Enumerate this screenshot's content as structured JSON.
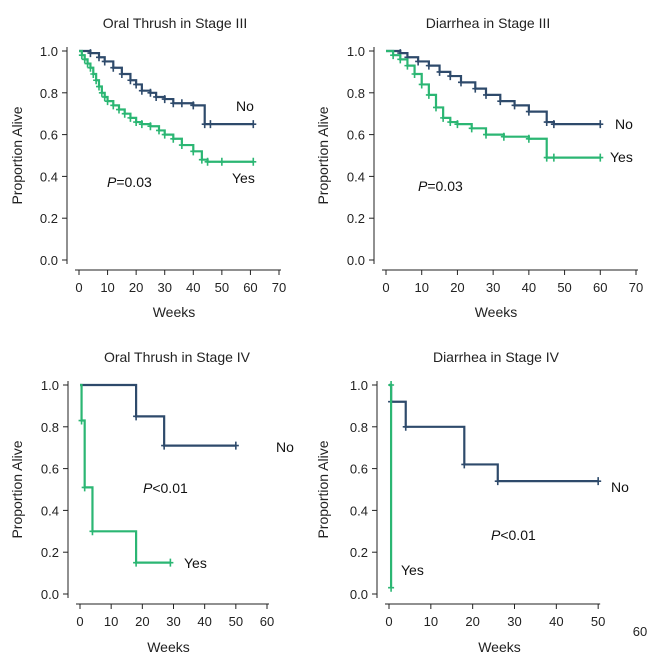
{
  "chart_data": [
    {
      "type": "line",
      "title": "Oral Thrush in Stage III",
      "xlabel": "Weeks",
      "ylabel": "Proportion Alive",
      "xlim": [
        0,
        70
      ],
      "ylim": [
        0,
        1
      ],
      "xticks": [
        "0",
        "10",
        "20",
        "30",
        "40",
        "50",
        "60",
        "70"
      ],
      "yticks": [
        "0.0",
        "0.2",
        "0.4",
        "0.6",
        "0.8",
        "1.0"
      ],
      "annotation": {
        "prefix": "P",
        "text": "=0.03"
      },
      "series": [
        {
          "name": "No",
          "color": "#2e4a6b",
          "x": [
            0,
            4,
            7,
            9,
            12,
            15,
            18,
            20,
            22,
            25,
            27,
            30,
            33,
            36,
            40,
            44,
            46,
            61
          ],
          "y": [
            1.0,
            0.99,
            0.97,
            0.95,
            0.92,
            0.89,
            0.86,
            0.84,
            0.81,
            0.8,
            0.78,
            0.77,
            0.75,
            0.75,
            0.74,
            0.65,
            0.65,
            0.65
          ]
        },
        {
          "name": "Yes",
          "color": "#2bb673",
          "x": [
            0,
            1,
            2,
            3,
            4,
            5,
            6,
            7,
            8,
            9,
            10,
            12,
            14,
            16,
            18,
            20,
            22,
            25,
            28,
            30,
            33,
            36,
            40,
            43,
            45,
            50,
            61
          ],
          "y": [
            1.0,
            0.98,
            0.96,
            0.94,
            0.92,
            0.89,
            0.86,
            0.83,
            0.8,
            0.78,
            0.76,
            0.74,
            0.72,
            0.7,
            0.68,
            0.66,
            0.65,
            0.64,
            0.62,
            0.6,
            0.58,
            0.55,
            0.52,
            0.48,
            0.47,
            0.47,
            0.47
          ]
        }
      ]
    },
    {
      "type": "line",
      "title": "Diarrhea in Stage III",
      "xlabel": "Weeks",
      "ylabel": "Proportion Alive",
      "xlim": [
        0,
        70
      ],
      "ylim": [
        0,
        1
      ],
      "xticks": [
        "0",
        "10",
        "20",
        "30",
        "40",
        "50",
        "60",
        "70"
      ],
      "yticks": [
        "0.0",
        "0.2",
        "0.4",
        "0.6",
        "0.8",
        "1.0"
      ],
      "annotation": {
        "prefix": "P",
        "text": "=0.03"
      },
      "series": [
        {
          "name": "No",
          "color": "#2e4a6b",
          "x": [
            0,
            4,
            6,
            9,
            12,
            15,
            18,
            21,
            25,
            28,
            32,
            36,
            40,
            45,
            47,
            60
          ],
          "y": [
            1.0,
            0.99,
            0.97,
            0.95,
            0.93,
            0.9,
            0.88,
            0.85,
            0.82,
            0.79,
            0.76,
            0.74,
            0.71,
            0.66,
            0.65,
            0.65
          ]
        },
        {
          "name": "Yes",
          "color": "#2bb673",
          "x": [
            0,
            2,
            4,
            6,
            8,
            10,
            12,
            14,
            16,
            18,
            20,
            24,
            28,
            33,
            40,
            45,
            47,
            60
          ],
          "y": [
            1.0,
            0.98,
            0.96,
            0.93,
            0.89,
            0.84,
            0.79,
            0.73,
            0.68,
            0.66,
            0.65,
            0.63,
            0.6,
            0.59,
            0.58,
            0.49,
            0.49,
            0.49
          ]
        }
      ]
    },
    {
      "type": "line",
      "title": "Oral Thrush in Stage IV",
      "xlabel": "Weeks",
      "ylabel": "Proportion Alive",
      "xlim": [
        0,
        60
      ],
      "ylim": [
        0,
        1
      ],
      "xticks": [
        "0",
        "10",
        "20",
        "30",
        "40",
        "50",
        "60"
      ],
      "yticks": [
        "0.0",
        "0.2",
        "0.4",
        "0.6",
        "0.8",
        "1.0"
      ],
      "annotation": {
        "prefix": "P",
        "text": "<0.01"
      },
      "series": [
        {
          "name": "No",
          "color": "#2e4a6b",
          "x": [
            0,
            18,
            27,
            50
          ],
          "y": [
            1.0,
            0.85,
            0.71,
            0.71
          ]
        },
        {
          "name": "Yes",
          "color": "#2bb673",
          "x": [
            0,
            0.5,
            1.5,
            4,
            18,
            29
          ],
          "y": [
            1.0,
            0.83,
            0.51,
            0.3,
            0.15,
            0.15
          ]
        }
      ]
    },
    {
      "type": "line",
      "title": "Diarrhea in Stage IV",
      "xlabel": "Weeks",
      "ylabel": "Proportion Alive",
      "xlim": [
        0,
        60
      ],
      "ylim": [
        0,
        1
      ],
      "xticks": [
        "0",
        "10",
        "20",
        "30",
        "40",
        "50"
      ],
      "extra_label": "60",
      "yticks": [
        "0.0",
        "0.2",
        "0.4",
        "0.6",
        "0.8",
        "1.0"
      ],
      "annotation": {
        "prefix": "P",
        "text": "<0.01"
      },
      "series": [
        {
          "name": "No",
          "color": "#2e4a6b",
          "x": [
            0,
            0.5,
            4,
            18,
            26,
            50
          ],
          "y": [
            1.0,
            0.92,
            0.8,
            0.62,
            0.54,
            0.54
          ]
        },
        {
          "name": "Yes",
          "color": "#2bb673",
          "x": [
            0,
            0.5,
            0.5
          ],
          "y": [
            1.0,
            1.0,
            0.03
          ]
        }
      ]
    }
  ]
}
